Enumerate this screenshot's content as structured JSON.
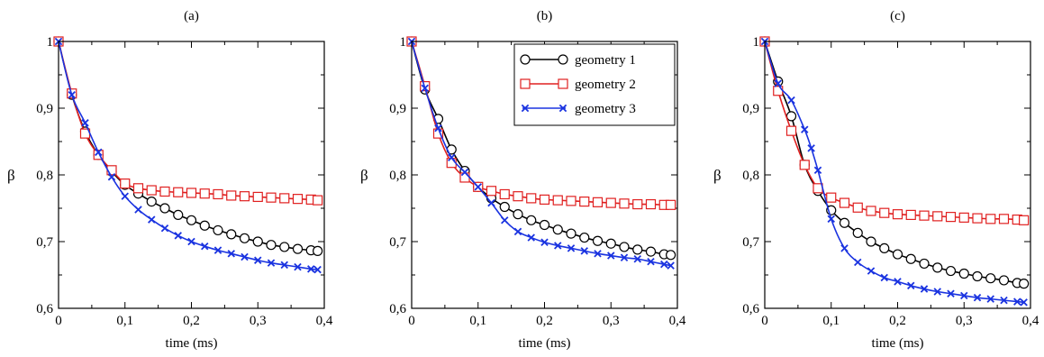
{
  "chart_data": [
    {
      "type": "line",
      "title": "(a)",
      "xlabel": "time (ms)",
      "ylabel": "β",
      "xlim": [
        0,
        0.4
      ],
      "ylim": [
        0.6,
        1.0
      ],
      "xticks": [
        "0",
        "0,1",
        "0,2",
        "0,3",
        "0,4"
      ],
      "yticks": [
        "0,6",
        "0,7",
        "0,8",
        "0,9",
        "1"
      ],
      "legend": false,
      "grid": false,
      "series": [
        {
          "name": "geometry 1",
          "color": "#000000",
          "marker": "circle",
          "x": [
            0,
            0.02,
            0.04,
            0.06,
            0.08,
            0.1,
            0.12,
            0.14,
            0.16,
            0.18,
            0.2,
            0.22,
            0.24,
            0.26,
            0.28,
            0.3,
            0.32,
            0.34,
            0.36,
            0.38,
            0.39
          ],
          "y": [
            1.0,
            0.92,
            0.865,
            0.83,
            0.805,
            0.785,
            0.772,
            0.76,
            0.75,
            0.74,
            0.732,
            0.724,
            0.717,
            0.711,
            0.705,
            0.7,
            0.695,
            0.692,
            0.689,
            0.687,
            0.686
          ]
        },
        {
          "name": "geometry 2",
          "color": "#e02020",
          "marker": "square",
          "x": [
            0,
            0.02,
            0.04,
            0.06,
            0.08,
            0.1,
            0.12,
            0.14,
            0.16,
            0.18,
            0.2,
            0.22,
            0.24,
            0.26,
            0.28,
            0.3,
            0.32,
            0.34,
            0.36,
            0.38,
            0.39
          ],
          "y": [
            1.0,
            0.922,
            0.862,
            0.83,
            0.807,
            0.787,
            0.78,
            0.777,
            0.775,
            0.774,
            0.773,
            0.772,
            0.771,
            0.769,
            0.768,
            0.767,
            0.766,
            0.765,
            0.764,
            0.763,
            0.762
          ]
        },
        {
          "name": "geometry 3",
          "color": "#1a33e0",
          "marker": "x",
          "x": [
            0,
            0.02,
            0.04,
            0.06,
            0.08,
            0.1,
            0.12,
            0.14,
            0.16,
            0.18,
            0.2,
            0.22,
            0.24,
            0.26,
            0.28,
            0.3,
            0.32,
            0.34,
            0.36,
            0.38,
            0.39
          ],
          "y": [
            1.0,
            0.92,
            0.878,
            0.834,
            0.797,
            0.768,
            0.748,
            0.733,
            0.72,
            0.709,
            0.7,
            0.693,
            0.687,
            0.682,
            0.677,
            0.672,
            0.668,
            0.665,
            0.662,
            0.659,
            0.658
          ]
        }
      ]
    },
    {
      "type": "line",
      "title": "(b)",
      "xlabel": "time (ms)",
      "ylabel": "β",
      "xlim": [
        0,
        0.4
      ],
      "ylim": [
        0.6,
        1.0
      ],
      "xticks": [
        "0",
        "0,1",
        "0,2",
        "0,3",
        "0,4"
      ],
      "yticks": [
        "0,6",
        "0,7",
        "0,8",
        "0,9",
        "1"
      ],
      "legend": "top-right",
      "grid": false,
      "series": [
        {
          "name": "geometry 1",
          "color": "#000000",
          "marker": "circle",
          "x": [
            0,
            0.02,
            0.04,
            0.06,
            0.08,
            0.1,
            0.12,
            0.14,
            0.16,
            0.18,
            0.2,
            0.22,
            0.24,
            0.26,
            0.28,
            0.3,
            0.32,
            0.34,
            0.36,
            0.38,
            0.39
          ],
          "y": [
            1.0,
            0.928,
            0.884,
            0.838,
            0.806,
            0.782,
            0.765,
            0.752,
            0.741,
            0.732,
            0.725,
            0.718,
            0.712,
            0.706,
            0.701,
            0.697,
            0.692,
            0.688,
            0.685,
            0.681,
            0.68
          ]
        },
        {
          "name": "geometry 2",
          "color": "#e02020",
          "marker": "square",
          "x": [
            0,
            0.02,
            0.04,
            0.06,
            0.08,
            0.1,
            0.12,
            0.14,
            0.16,
            0.18,
            0.2,
            0.22,
            0.24,
            0.26,
            0.28,
            0.3,
            0.32,
            0.34,
            0.36,
            0.38,
            0.39
          ],
          "y": [
            1.0,
            0.933,
            0.862,
            0.818,
            0.796,
            0.782,
            0.776,
            0.771,
            0.768,
            0.765,
            0.763,
            0.762,
            0.761,
            0.76,
            0.759,
            0.758,
            0.757,
            0.756,
            0.756,
            0.755,
            0.755
          ]
        },
        {
          "name": "geometry 3",
          "color": "#1a33e0",
          "marker": "x",
          "x": [
            0,
            0.02,
            0.04,
            0.06,
            0.08,
            0.1,
            0.12,
            0.14,
            0.16,
            0.18,
            0.2,
            0.22,
            0.24,
            0.26,
            0.28,
            0.3,
            0.32,
            0.34,
            0.36,
            0.38,
            0.39
          ],
          "y": [
            1.0,
            0.93,
            0.87,
            0.826,
            0.804,
            0.782,
            0.758,
            0.732,
            0.715,
            0.706,
            0.699,
            0.694,
            0.69,
            0.686,
            0.682,
            0.679,
            0.676,
            0.674,
            0.67,
            0.666,
            0.664
          ]
        }
      ]
    },
    {
      "type": "line",
      "title": "(c)",
      "xlabel": "time (ms)",
      "ylabel": "β",
      "xlim": [
        0,
        0.4
      ],
      "ylim": [
        0.6,
        1.0
      ],
      "xticks": [
        "0",
        "0,1",
        "0,2",
        "0,3",
        "0,4"
      ],
      "yticks": [
        "0,6",
        "0,7",
        "0,8",
        "0,9",
        "1"
      ],
      "legend": false,
      "grid": false,
      "series": [
        {
          "name": "geometry 1",
          "color": "#000000",
          "marker": "circle",
          "x": [
            0,
            0.02,
            0.04,
            0.06,
            0.08,
            0.1,
            0.12,
            0.14,
            0.16,
            0.18,
            0.2,
            0.22,
            0.24,
            0.26,
            0.28,
            0.3,
            0.32,
            0.34,
            0.36,
            0.38,
            0.39
          ],
          "y": [
            1.0,
            0.94,
            0.888,
            0.815,
            0.776,
            0.747,
            0.728,
            0.713,
            0.7,
            0.69,
            0.681,
            0.674,
            0.667,
            0.661,
            0.656,
            0.652,
            0.648,
            0.645,
            0.642,
            0.638,
            0.637
          ]
        },
        {
          "name": "geometry 2",
          "color": "#e02020",
          "marker": "square",
          "x": [
            0,
            0.02,
            0.04,
            0.06,
            0.08,
            0.1,
            0.12,
            0.14,
            0.16,
            0.18,
            0.2,
            0.22,
            0.24,
            0.26,
            0.28,
            0.3,
            0.32,
            0.34,
            0.36,
            0.38,
            0.39
          ],
          "y": [
            1.0,
            0.926,
            0.866,
            0.815,
            0.78,
            0.766,
            0.758,
            0.751,
            0.746,
            0.743,
            0.741,
            0.74,
            0.739,
            0.738,
            0.737,
            0.736,
            0.735,
            0.734,
            0.734,
            0.733,
            0.732
          ]
        },
        {
          "name": "geometry 3",
          "color": "#1a33e0",
          "marker": "x",
          "x": [
            0,
            0.02,
            0.04,
            0.06,
            0.07,
            0.08,
            0.1,
            0.12,
            0.14,
            0.16,
            0.18,
            0.2,
            0.22,
            0.24,
            0.26,
            0.28,
            0.3,
            0.32,
            0.34,
            0.36,
            0.38,
            0.39
          ],
          "y": [
            1.0,
            0.937,
            0.912,
            0.868,
            0.84,
            0.807,
            0.734,
            0.69,
            0.669,
            0.656,
            0.646,
            0.64,
            0.634,
            0.629,
            0.625,
            0.622,
            0.619,
            0.616,
            0.614,
            0.612,
            0.61,
            0.609
          ]
        }
      ]
    }
  ]
}
